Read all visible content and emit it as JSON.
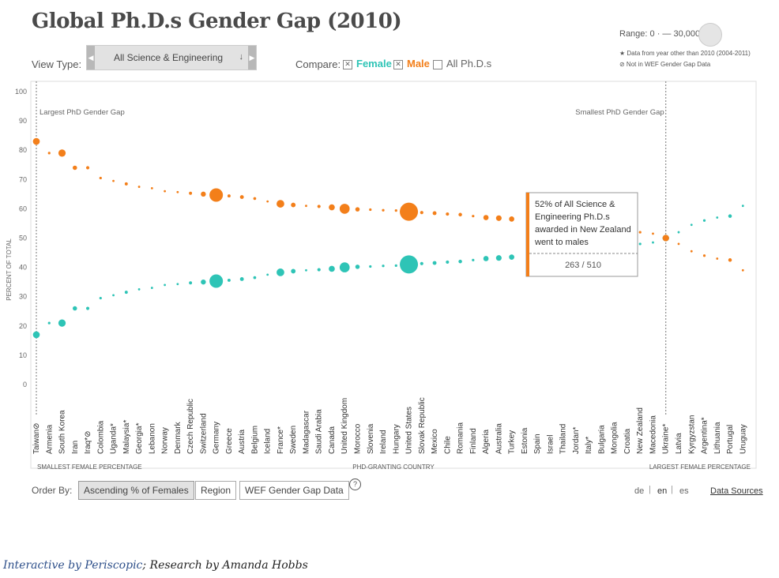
{
  "header": {
    "title": "Global Ph.D.s Gender Gap (2010)",
    "view_type_label": "View Type:",
    "view_type_value": "All Science & Engineering",
    "compare_label": "Compare:",
    "compare_options": [
      {
        "label": "Female",
        "checked": true,
        "color": "#2ec4b6"
      },
      {
        "label": "Male",
        "checked": true,
        "color": "#f37f1a"
      },
      {
        "label": "All Ph.D.s",
        "checked": false,
        "color": "#666666"
      }
    ],
    "range_label": "Range: 0 · — 30,000",
    "note_star": "★ Data from year other than 2010 (2004-2011)",
    "note_wef": "⊘ Not in WEF Gender Gap Data"
  },
  "footer": {
    "order_by_label": "Order By:",
    "order_buttons": [
      "Ascending % of Females",
      "Region",
      "WEF Gender Gap Data"
    ],
    "languages": [
      "de",
      "en",
      "es"
    ],
    "data_sources": "Data Sources",
    "credit_link": "Interactive by Periscopic",
    "credit_rest": "; Research by Amanda Hobbs"
  },
  "chart_data": {
    "type": "scatter",
    "ylabel": "PERCENT OF TOTAL",
    "xlabel": "PHD-GRANTING COUNTRY",
    "ylim": [
      0,
      100
    ],
    "yticks": [
      0,
      10,
      20,
      30,
      40,
      50,
      60,
      70,
      80,
      90,
      100
    ],
    "left_label": "SMALLEST FEMALE PERCENTAGE",
    "right_label": "LARGEST FEMALE PERCENTAGE",
    "marker_left": "Largest PhD Gender Gap",
    "marker_right": "Smallest PhD Gender Gap",
    "colors": {
      "female": "#2ec4b6",
      "male": "#f37f1a"
    },
    "categories": [
      "Taiwan⊘",
      "Armenia",
      "South Korea",
      "Iran",
      "Iraq*⊘",
      "Colombia",
      "Uganda*",
      "Malaysia*",
      "Georgia*",
      "Lebanon",
      "Norway",
      "Denmark",
      "Czech Republic",
      "Switzerland",
      "Germany",
      "Greece",
      "Austria",
      "Belgium",
      "Iceland",
      "France*",
      "Sweden",
      "Madagascar",
      "Saudi Arabia",
      "Canada",
      "United Kingdom",
      "Morocco",
      "Slovenia",
      "Ireland",
      "Hungary",
      "United States",
      "Slovak Republic",
      "Mexico",
      "Chile",
      "Romania",
      "Finland",
      "Algeria",
      "Australia",
      "Turkey",
      "Estonia",
      "Spain",
      "Israel",
      "Thailand",
      "Jordan*",
      "Italy*",
      "Bulgaria",
      "Mongolia",
      "Croatia",
      "New Zealand",
      "Macedonia",
      "Ukraine*",
      "Latvia",
      "Kyrgyzstan",
      "Argentina*",
      "Lithuania",
      "Portugal",
      "Uruguay"
    ],
    "series": [
      {
        "name": "Female",
        "values": [
          17,
          21,
          21,
          26,
          26,
          29.5,
          30.5,
          31.5,
          32.5,
          33,
          34,
          34.3,
          34.7,
          35,
          35.3,
          35.6,
          36,
          36.5,
          37.5,
          38.3,
          38.7,
          39,
          39.2,
          39.5,
          40,
          40.2,
          40.3,
          40.5,
          40.6,
          41,
          41.3,
          41.5,
          41.8,
          42,
          42.5,
          43,
          43.2,
          43.5,
          null,
          null,
          null,
          null,
          null,
          null,
          null,
          null,
          null,
          48,
          48.5,
          50,
          52,
          54.5,
          56,
          57,
          57.5,
          61
        ]
      },
      {
        "name": "Male",
        "values": [
          83,
          79,
          79,
          74,
          74,
          70.5,
          69.5,
          68.5,
          67.5,
          67,
          66,
          65.7,
          65.3,
          65,
          64.7,
          64.4,
          64,
          63.5,
          62.5,
          61.7,
          61.3,
          61,
          60.8,
          60.5,
          60,
          59.8,
          59.7,
          59.5,
          59.4,
          59,
          58.7,
          58.5,
          58.2,
          58,
          57.5,
          57,
          56.8,
          56.5,
          null,
          null,
          null,
          null,
          null,
          null,
          null,
          null,
          null,
          52,
          51.5,
          50,
          48,
          45.5,
          44,
          43,
          42.5,
          39
        ]
      }
    ],
    "sizes": [
      2200,
      300,
      2500,
      900,
      500,
      300,
      200,
      450,
      200,
      150,
      200,
      200,
      450,
      1200,
      8500,
      450,
      700,
      400,
      150,
      2800,
      1000,
      100,
      500,
      1700,
      4700,
      900,
      300,
      300,
      300,
      15500,
      500,
      700,
      500,
      600,
      300,
      1300,
      1500,
      1300,
      0,
      0,
      0,
      0,
      0,
      0,
      0,
      0,
      0,
      300,
      200,
      2000,
      200,
      150,
      300,
      200,
      600,
      200
    ],
    "tooltip": {
      "line1": "52% of All Science &",
      "line2": "Engineering Ph.D.s",
      "line3": "awarded in New Zealand",
      "line4": "went to males",
      "value": "263 / 510"
    }
  }
}
